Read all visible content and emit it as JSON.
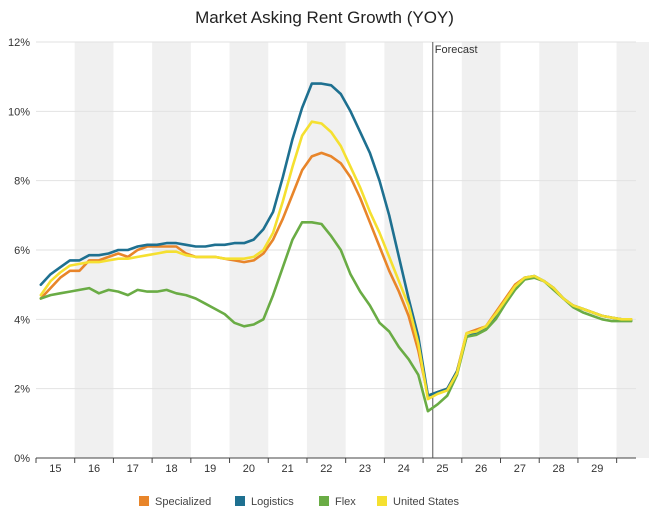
{
  "chart_data": {
    "type": "line",
    "title": "Market Asking Rent Growth (YOY)",
    "xlabel": "",
    "ylabel": "",
    "x_unit": "year (2-digit, quarterly data)",
    "x_range": [
      14.5,
      30.0
    ],
    "ylim": [
      0,
      12
    ],
    "y_ticks": [
      "0%",
      "2%",
      "4%",
      "6%",
      "8%",
      "10%",
      "12%"
    ],
    "y_tick_values": [
      0,
      2,
      4,
      6,
      8,
      10,
      12
    ],
    "x_tick_labels": [
      "15",
      "16",
      "17",
      "18",
      "19",
      "20",
      "21",
      "22",
      "23",
      "24",
      "25",
      "26",
      "27",
      "28",
      "29"
    ],
    "x_tick_values": [
      15,
      16,
      17,
      18,
      19,
      20,
      21,
      22,
      23,
      24,
      25,
      26,
      27,
      28,
      29
    ],
    "grid": true,
    "legend_position": "bottom",
    "annotations": [
      {
        "text": "Forecast",
        "x": 24.75
      }
    ],
    "x": [
      14.625,
      14.875,
      15.125,
      15.375,
      15.625,
      15.875,
      16.125,
      16.375,
      16.625,
      16.875,
      17.125,
      17.375,
      17.625,
      17.875,
      18.125,
      18.375,
      18.625,
      18.875,
      19.125,
      19.375,
      19.625,
      19.875,
      20.125,
      20.375,
      20.625,
      20.875,
      21.125,
      21.375,
      21.625,
      21.875,
      22.125,
      22.375,
      22.625,
      22.875,
      23.125,
      23.375,
      23.625,
      23.875,
      24.125,
      24.375,
      24.625,
      24.875,
      25.125,
      25.375,
      25.625,
      25.875,
      26.125,
      26.375,
      26.625,
      26.875,
      27.125,
      27.375,
      27.625,
      27.875,
      28.125,
      28.375,
      28.625,
      28.875,
      29.125,
      29.375,
      29.625,
      29.875
    ],
    "series": [
      {
        "name": "Specialized",
        "color": "#e8852a",
        "values": [
          4.6,
          4.9,
          5.2,
          5.4,
          5.4,
          5.7,
          5.7,
          5.8,
          5.9,
          5.8,
          6.0,
          6.1,
          6.1,
          6.1,
          6.1,
          5.9,
          5.8,
          5.8,
          5.8,
          5.75,
          5.7,
          5.65,
          5.7,
          5.9,
          6.3,
          6.9,
          7.6,
          8.3,
          8.7,
          8.8,
          8.7,
          8.5,
          8.1,
          7.5,
          6.8,
          6.1,
          5.4,
          4.8,
          4.1,
          3.1,
          1.8,
          1.9,
          2.0,
          2.5,
          3.6,
          3.7,
          3.8,
          4.2,
          4.6,
          5.0,
          5.2,
          5.2,
          5.1,
          4.9,
          4.6,
          4.4,
          4.3,
          4.2,
          4.1,
          4.05,
          4.0,
          4.0
        ]
      },
      {
        "name": "Logistics",
        "color": "#1e7090",
        "values": [
          5.0,
          5.3,
          5.5,
          5.7,
          5.7,
          5.85,
          5.85,
          5.9,
          6.0,
          6.0,
          6.1,
          6.15,
          6.15,
          6.2,
          6.2,
          6.15,
          6.1,
          6.1,
          6.15,
          6.15,
          6.2,
          6.2,
          6.3,
          6.6,
          7.1,
          8.1,
          9.2,
          10.1,
          10.8,
          10.8,
          10.75,
          10.5,
          10.0,
          9.4,
          8.8,
          8.0,
          7.0,
          5.8,
          4.6,
          3.5,
          1.8,
          1.9,
          2.0,
          2.5,
          3.5,
          3.6,
          3.75,
          4.1,
          4.5,
          4.9,
          5.2,
          5.25,
          5.1,
          4.9,
          4.6,
          4.4,
          4.3,
          4.2,
          4.1,
          4.05,
          4.0,
          3.98
        ]
      },
      {
        "name": "Flex",
        "color": "#6aac45",
        "values": [
          4.6,
          4.7,
          4.75,
          4.8,
          4.85,
          4.9,
          4.75,
          4.85,
          4.8,
          4.7,
          4.85,
          4.8,
          4.8,
          4.85,
          4.75,
          4.7,
          4.6,
          4.45,
          4.3,
          4.15,
          3.9,
          3.8,
          3.85,
          4.0,
          4.7,
          5.5,
          6.3,
          6.8,
          6.8,
          6.75,
          6.4,
          6.0,
          5.3,
          4.8,
          4.4,
          3.9,
          3.65,
          3.2,
          2.85,
          2.4,
          1.35,
          1.55,
          1.8,
          2.4,
          3.5,
          3.55,
          3.7,
          4.0,
          4.45,
          4.85,
          5.15,
          5.2,
          5.1,
          4.85,
          4.6,
          4.35,
          4.2,
          4.1,
          4.0,
          3.95,
          3.95,
          3.95
        ]
      },
      {
        "name": "United States",
        "color": "#f5e030",
        "values": [
          4.7,
          5.1,
          5.35,
          5.55,
          5.6,
          5.65,
          5.65,
          5.7,
          5.75,
          5.75,
          5.8,
          5.85,
          5.9,
          5.95,
          5.95,
          5.85,
          5.8,
          5.8,
          5.8,
          5.75,
          5.75,
          5.75,
          5.8,
          6.0,
          6.5,
          7.4,
          8.4,
          9.3,
          9.7,
          9.65,
          9.4,
          9.0,
          8.4,
          7.8,
          7.1,
          6.5,
          5.8,
          5.1,
          4.4,
          3.3,
          1.7,
          1.85,
          1.95,
          2.45,
          3.6,
          3.65,
          3.8,
          4.15,
          4.55,
          4.95,
          5.2,
          5.25,
          5.1,
          4.9,
          4.6,
          4.4,
          4.3,
          4.2,
          4.1,
          4.05,
          4.0,
          4.0
        ]
      }
    ]
  },
  "colors": {
    "band": "#f0f0f0",
    "grid": "#e2e2e2",
    "axis": "#444444",
    "forecast_line": "#555555"
  }
}
